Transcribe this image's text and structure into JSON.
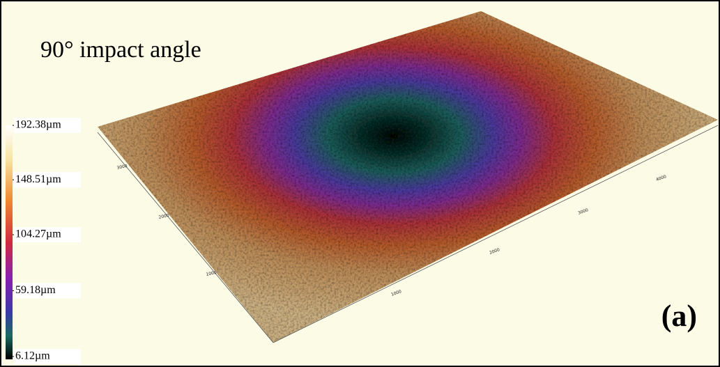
{
  "title": "90° impact angle",
  "panel_label": "(a)",
  "colorbar": {
    "ticks": [
      {
        "value": 192.38,
        "label": "192.38µm"
      },
      {
        "value": 148.51,
        "label": "148.51µm"
      },
      {
        "value": 104.27,
        "label": "104.27µm"
      },
      {
        "value": 59.18,
        "label": "59.18µm"
      },
      {
        "value": 6.12,
        "label": "6.12µm"
      }
    ]
  },
  "left_axis_labels": [
    3000,
    2000,
    1000
  ],
  "right_axis_labels": [
    4000,
    3000,
    2000,
    1000
  ]
}
